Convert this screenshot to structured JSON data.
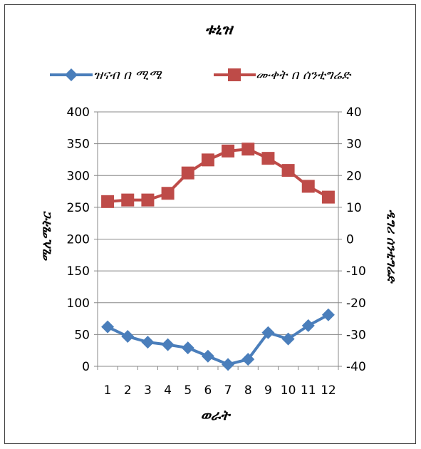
{
  "chart_data": {
    "type": "line",
    "title": "ቱኒዝ",
    "categories": [
      "1",
      "2",
      "3",
      "4",
      "5",
      "6",
      "7",
      "8",
      "9",
      "10",
      "11",
      "12"
    ],
    "xlabel": "ወራት",
    "ylabel": "ሚሊሜትር",
    "y2label": "ዲግሪ ሰንቲግሬድ",
    "ylim": [
      0,
      400
    ],
    "y2lim": [
      -40,
      40
    ],
    "y_ticks": [
      "0",
      "50",
      "100",
      "150",
      "200",
      "250",
      "300",
      "350",
      "400"
    ],
    "y2_ticks": [
      "-40",
      "-30",
      "-20",
      "-10",
      "0",
      "10",
      "20",
      "30",
      "40"
    ],
    "legend_position": "top",
    "grid": true,
    "series": [
      {
        "name": "ዝናብ በ ሚሜ",
        "axis": "left",
        "color": "#4a7ebb",
        "marker": "diamond",
        "values": [
          62,
          47,
          38,
          34,
          29,
          16,
          3,
          11,
          53,
          43,
          64,
          81
        ]
      },
      {
        "name": "ሙቀት በ ሰንቲግሬድ",
        "axis": "right",
        "color": "#be4b48",
        "marker": "square",
        "values": [
          11.8,
          12.3,
          12.3,
          14.4,
          20.8,
          24.9,
          27.7,
          28.3,
          25.4,
          21.6,
          16.6,
          13.2
        ]
      }
    ]
  }
}
